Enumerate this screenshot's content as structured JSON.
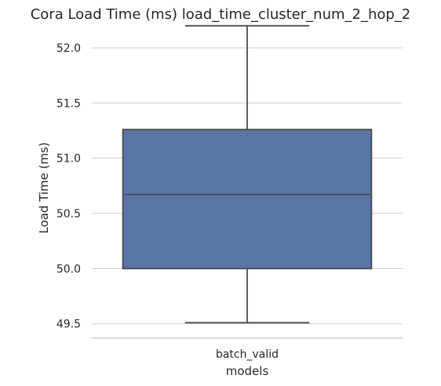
{
  "chart_data": {
    "type": "box",
    "title": "Cora Load Time (ms) load_time_cluster_num_2_hop_2",
    "xlabel": "models",
    "ylabel": "Load Time (ms)",
    "categories": [
      "batch_valid"
    ],
    "ylim": [
      49.37,
      52.22
    ],
    "yticks": [
      49.5,
      50.0,
      50.5,
      51.0,
      51.5,
      52.0
    ],
    "ytick_labels": [
      "49.5",
      "50.0",
      "50.5",
      "51.0",
      "51.5",
      "52.0"
    ],
    "grid": "horizontal",
    "boxes": [
      {
        "category": "batch_valid",
        "min": 49.51,
        "q1": 50.0,
        "median": 50.67,
        "q3": 51.26,
        "max": 52.2,
        "color": "#5975a4"
      }
    ]
  }
}
